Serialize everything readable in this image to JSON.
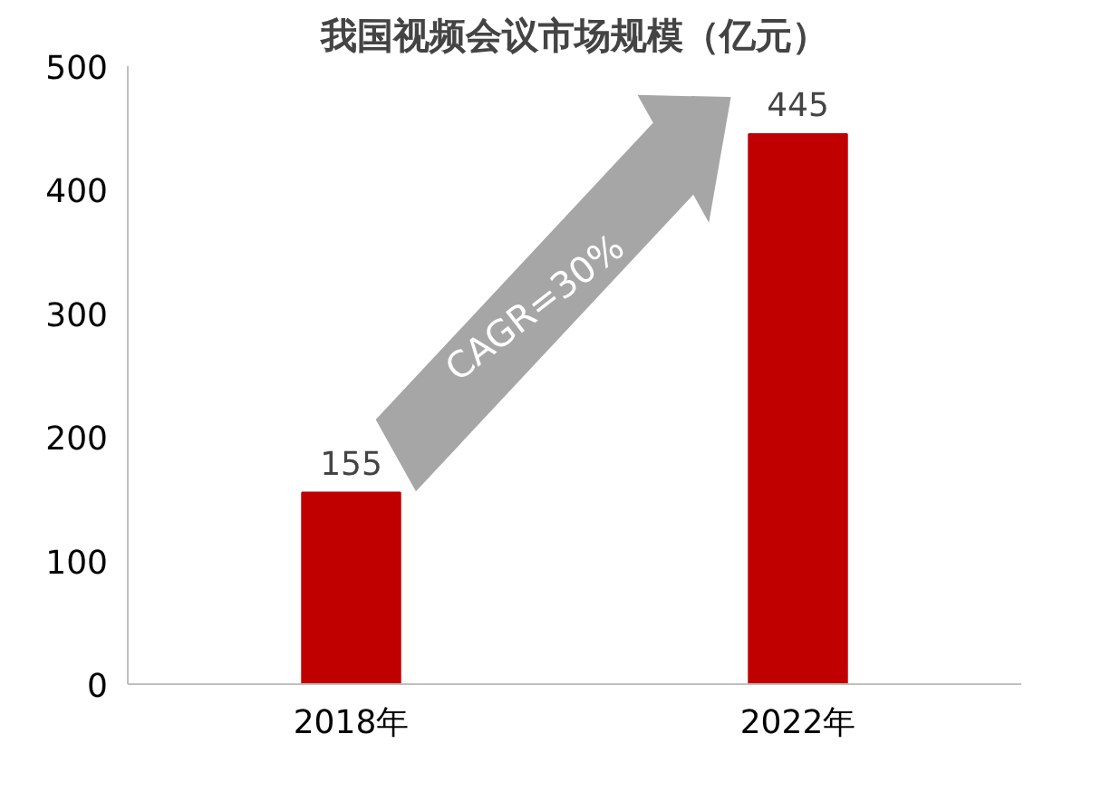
{
  "chart_data": {
    "type": "bar",
    "title": "我国视频会议市场规模（亿元）",
    "categories": [
      "2018年",
      "2022年"
    ],
    "values": [
      155,
      445
    ],
    "color": "#c00000",
    "ylim": [
      0,
      500
    ],
    "yticks": [
      0,
      100,
      200,
      300,
      400,
      500
    ],
    "grid": false,
    "data_labels": true,
    "annotations": [
      "CAGR=30%"
    ]
  }
}
